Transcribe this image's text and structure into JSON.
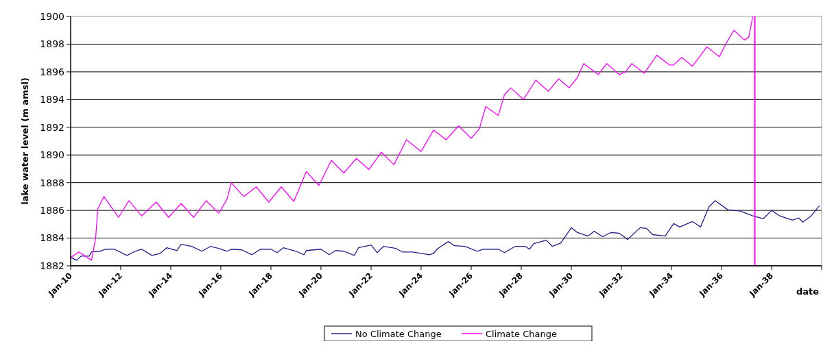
{
  "chart_data": {
    "type": "line",
    "ylabel": "lake water level (m amsl)",
    "xlabel": "date",
    "xlim": [
      "2010-01",
      "2040-01"
    ],
    "xticks": [
      {
        "value": "2010-01",
        "label": "Jan-10"
      },
      {
        "value": "2012-01",
        "label": "Jan-12"
      },
      {
        "value": "2014-01",
        "label": "Jan-14"
      },
      {
        "value": "2016-01",
        "label": "Jan-16"
      },
      {
        "value": "2018-01",
        "label": "Jan-18"
      },
      {
        "value": "2020-01",
        "label": "Jan-20"
      },
      {
        "value": "2022-01",
        "label": "Jan-22"
      },
      {
        "value": "2024-01",
        "label": "Jan-24"
      },
      {
        "value": "2026-01",
        "label": "Jan-26"
      },
      {
        "value": "2028-01",
        "label": "Jan-28"
      },
      {
        "value": "2030-01",
        "label": "Jan-30"
      },
      {
        "value": "2032-01",
        "label": "Jan-32"
      },
      {
        "value": "2034-01",
        "label": "Jan-34"
      },
      {
        "value": "2036-01",
        "label": "Jan-36"
      },
      {
        "value": "2038-01",
        "label": "Jan-38"
      }
    ],
    "ylim": [
      1882,
      1900
    ],
    "yticks": [
      1882,
      1884,
      1886,
      1888,
      1890,
      1892,
      1894,
      1896,
      1898,
      1900
    ],
    "grid": "y",
    "legend": "bottom",
    "ref_lines": [
      {
        "axis": "x",
        "value": "2037-05",
        "color": "#ff00ff"
      }
    ],
    "series": [
      {
        "name": "No Climate Change",
        "color": "#1f1f8f",
        "x": [
          "2010-01",
          "2010-04",
          "2010-06",
          "2010-10",
          "2010-11",
          "2011-03",
          "2011-06",
          "2011-10",
          "2012-04",
          "2012-08",
          "2012-11",
          "2013-04",
          "2013-08",
          "2013-11",
          "2014-04",
          "2014-06",
          "2014-11",
          "2015-04",
          "2015-08",
          "2015-12",
          "2016-04",
          "2016-06",
          "2016-11",
          "2017-04",
          "2017-08",
          "2018-01",
          "2018-04",
          "2018-07",
          "2019-01",
          "2019-05",
          "2019-06",
          "2020-01",
          "2020-05",
          "2020-08",
          "2020-12",
          "2021-05",
          "2021-07",
          "2022-01",
          "2022-04",
          "2022-07",
          "2023-01",
          "2023-04",
          "2023-09",
          "2024-05",
          "2024-07",
          "2024-09",
          "2025-02",
          "2025-05",
          "2025-10",
          "2026-04",
          "2026-07",
          "2027-02",
          "2027-05",
          "2027-10",
          "2028-03",
          "2028-05",
          "2028-07",
          "2029-01",
          "2029-04",
          "2029-08",
          "2030-01",
          "2030-04",
          "2030-09",
          "2030-12",
          "2031-04",
          "2031-08",
          "2031-12",
          "2032-04",
          "2032-10",
          "2033-01",
          "2033-04",
          "2033-10",
          "2034-02",
          "2034-05",
          "2034-11",
          "2035-03",
          "2035-07",
          "2035-10",
          "2036-04",
          "2036-10",
          "2037-04",
          "2037-09",
          "2038-01",
          "2038-05",
          "2038-11",
          "2039-02",
          "2039-04",
          "2039-08",
          "2039-12"
        ],
        "values": [
          1882.6,
          1882.4,
          1882.7,
          1882.7,
          1883.0,
          1883.05,
          1883.2,
          1883.2,
          1882.75,
          1883.05,
          1883.2,
          1882.75,
          1882.9,
          1883.3,
          1883.1,
          1883.55,
          1883.4,
          1883.05,
          1883.4,
          1883.25,
          1883.05,
          1883.2,
          1883.15,
          1882.8,
          1883.2,
          1883.2,
          1882.95,
          1883.3,
          1883.05,
          1882.8,
          1883.1,
          1883.2,
          1882.8,
          1883.1,
          1883.05,
          1882.75,
          1883.3,
          1883.5,
          1882.95,
          1883.4,
          1883.25,
          1883.0,
          1883.0,
          1882.8,
          1882.9,
          1883.25,
          1883.75,
          1883.45,
          1883.4,
          1883.05,
          1883.2,
          1883.2,
          1882.95,
          1883.4,
          1883.4,
          1883.2,
          1883.6,
          1883.85,
          1883.4,
          1883.65,
          1884.75,
          1884.4,
          1884.15,
          1884.5,
          1884.1,
          1884.4,
          1884.35,
          1883.9,
          1884.75,
          1884.7,
          1884.25,
          1884.15,
          1885.05,
          1884.8,
          1885.2,
          1884.8,
          1886.25,
          1886.7,
          1886.05,
          1885.95,
          1885.6,
          1885.4,
          1886.0,
          1885.6,
          1885.3,
          1885.45,
          1885.15,
          1885.6,
          1886.35
        ]
      },
      {
        "name": "Climate Change",
        "color": "#ff00ff",
        "x": [
          "2010-01",
          "2010-05",
          "2010-11",
          "2011-01",
          "2011-02",
          "2011-05",
          "2011-12",
          "2012-05",
          "2012-11",
          "2013-06",
          "2013-12",
          "2014-06",
          "2014-12",
          "2015-06",
          "2015-12",
          "2016-04",
          "2016-06",
          "2016-12",
          "2017-06",
          "2017-12",
          "2018-06",
          "2018-12",
          "2019-06",
          "2019-12",
          "2020-06",
          "2020-12",
          "2021-06",
          "2021-12",
          "2022-06",
          "2022-12",
          "2023-06",
          "2024-01",
          "2024-07",
          "2025-01",
          "2025-07",
          "2026-01",
          "2026-05",
          "2026-08",
          "2027-02",
          "2027-05",
          "2027-08",
          "2028-02",
          "2028-08",
          "2029-02",
          "2029-07",
          "2029-12",
          "2030-04",
          "2030-07",
          "2031-02",
          "2031-06",
          "2031-12",
          "2032-03",
          "2032-06",
          "2032-12",
          "2033-06",
          "2033-12",
          "2034-02",
          "2034-06",
          "2034-11",
          "2035-06",
          "2035-12",
          "2036-03",
          "2036-07",
          "2036-12",
          "2037-02",
          "2037-04"
        ],
        "values": [
          1882.6,
          1883.0,
          1882.4,
          1884.0,
          1886.1,
          1887.0,
          1885.5,
          1886.7,
          1885.6,
          1886.6,
          1885.5,
          1886.5,
          1885.5,
          1886.7,
          1885.8,
          1886.8,
          1888.0,
          1887.0,
          1887.7,
          1886.6,
          1887.7,
          1886.65,
          1888.8,
          1887.8,
          1889.6,
          1888.7,
          1889.75,
          1888.95,
          1890.2,
          1889.3,
          1891.1,
          1890.25,
          1891.8,
          1891.1,
          1892.1,
          1891.2,
          1891.9,
          1893.5,
          1892.85,
          1894.35,
          1894.85,
          1894.0,
          1895.4,
          1894.6,
          1895.5,
          1894.85,
          1895.6,
          1896.6,
          1895.8,
          1896.6,
          1895.8,
          1896.0,
          1896.6,
          1895.9,
          1897.2,
          1896.5,
          1896.5,
          1897.05,
          1896.4,
          1897.8,
          1897.1,
          1898.0,
          1899.0,
          1898.3,
          1898.5,
          1900
        ]
      }
    ]
  }
}
